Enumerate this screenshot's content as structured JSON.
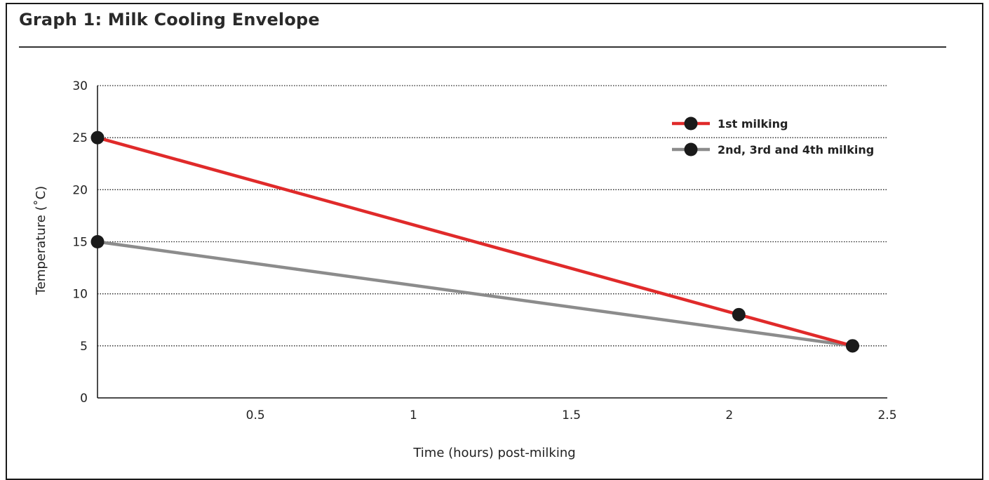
{
  "title": "Graph 1: Milk Cooling Envelope",
  "chart_data": {
    "type": "line",
    "title": "Graph 1: Milk Cooling Envelope",
    "xlabel": "Time (hours) post-milking",
    "ylabel": "Temperature (˚C)",
    "xlim": [
      0,
      2.5
    ],
    "ylim": [
      0,
      30
    ],
    "x_ticks": [
      0.5,
      1,
      1.5,
      2,
      2.5
    ],
    "x_tick_labels": [
      "0.5",
      "1",
      "1.5",
      "2",
      "2.5"
    ],
    "y_ticks": [
      0,
      5,
      10,
      15,
      20,
      25,
      30
    ],
    "y_tick_labels": [
      "0",
      "5",
      "10",
      "15",
      "20",
      "25",
      "30"
    ],
    "grid": "horizontal dotted",
    "legend_position": "top-right",
    "series": [
      {
        "name": "1st milking",
        "color": "#e02a2a",
        "points": [
          {
            "x": 0,
            "y": 25,
            "marker": true
          },
          {
            "x": 2.03,
            "y": 8,
            "marker": true
          },
          {
            "x": 2.39,
            "y": 5,
            "marker": true
          }
        ]
      },
      {
        "name": "2nd, 3rd and 4th milking",
        "color": "#8c8c8c",
        "points": [
          {
            "x": 0,
            "y": 15,
            "marker": true
          },
          {
            "x": 2.39,
            "y": 5,
            "marker": true
          }
        ]
      }
    ],
    "marker_color": "#1a1a1a"
  }
}
